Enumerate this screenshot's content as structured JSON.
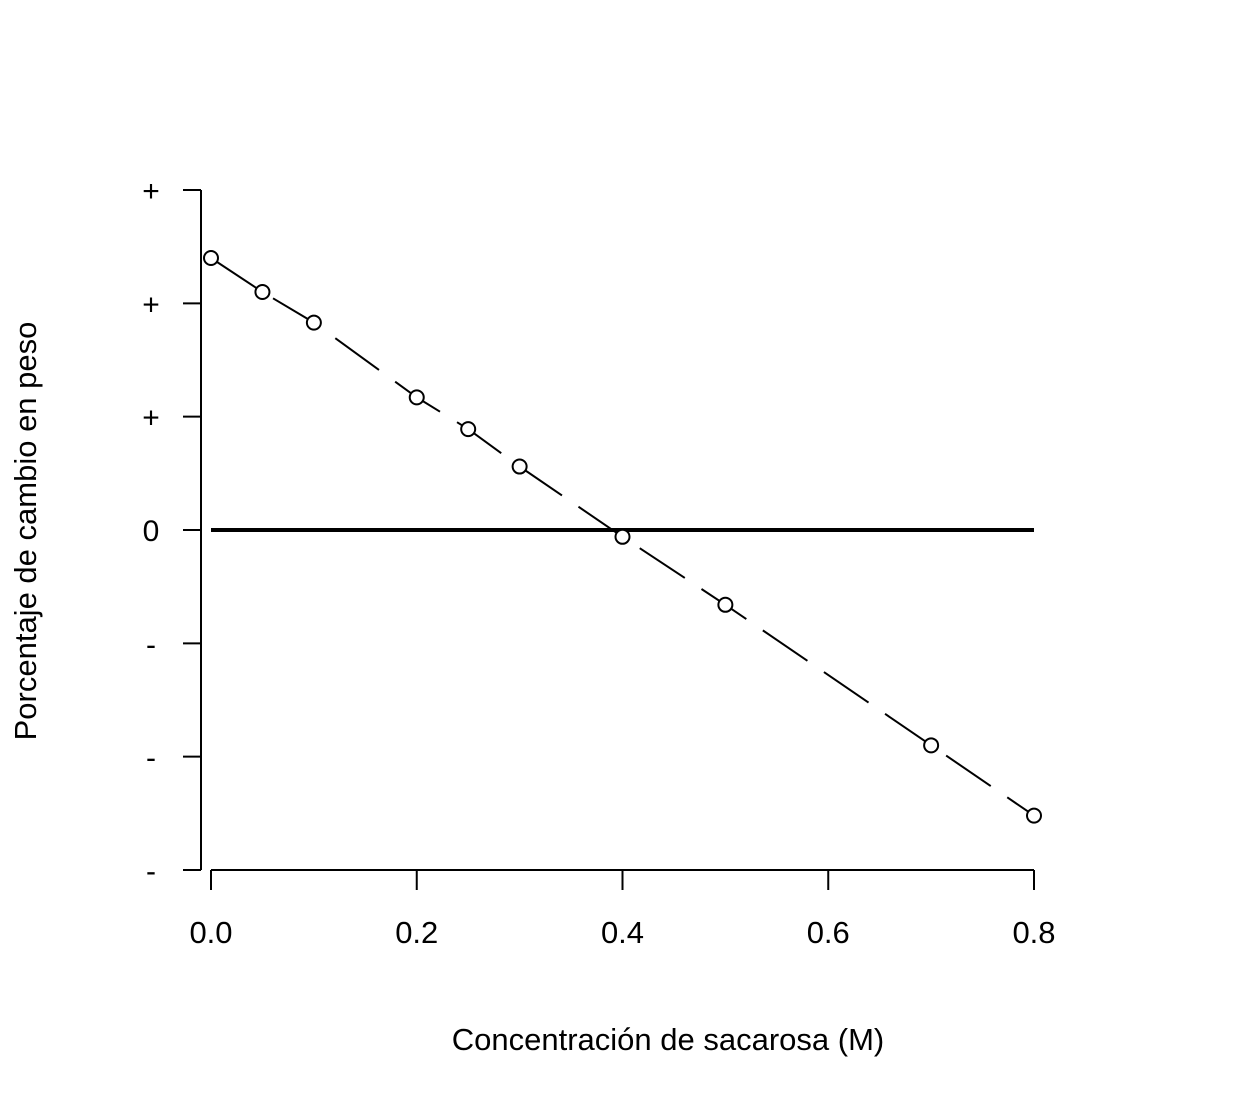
{
  "chart_data": {
    "type": "line",
    "title": "",
    "xlabel": "Concentración de sacarosa (M)",
    "ylabel": "Porcentaje de cambio en peso",
    "x_ticks": [
      0.0,
      0.2,
      0.4,
      0.6,
      0.8
    ],
    "x_tick_labels": [
      "0.0",
      "0.2",
      "0.4",
      "0.6",
      "0.8"
    ],
    "xlim": [
      0.0,
      0.8
    ],
    "y_ticks": [
      3,
      2,
      1,
      0,
      -1,
      -2,
      -3
    ],
    "y_tick_labels": [
      "+",
      "+",
      "+",
      "0",
      "-",
      "-",
      "-"
    ],
    "ylim": [
      -3,
      3
    ],
    "series": [
      {
        "x": [
          0.0,
          0.05,
          0.1,
          0.2,
          0.25,
          0.3,
          0.4,
          0.5,
          0.7,
          0.8
        ],
        "y": [
          2.4,
          2.1,
          1.83,
          1.17,
          0.89,
          0.56,
          -0.06,
          -0.66,
          -1.9,
          -2.52
        ],
        "line_style": "dashed",
        "marker": "open-circle",
        "color": "#000000"
      }
    ],
    "reference_line": {
      "y": 0,
      "style": "solid",
      "color": "#000000"
    },
    "grid": false,
    "legend": "none"
  }
}
